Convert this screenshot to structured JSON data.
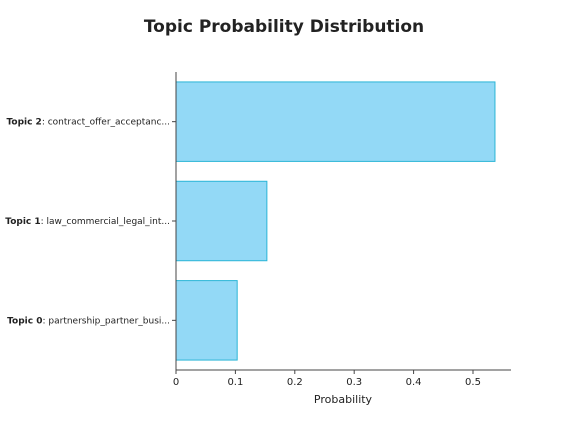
{
  "chart_data": {
    "type": "barh",
    "title": "Topic Probability Distribution",
    "x_label": "Probability",
    "categories": [
      {
        "topic": "Topic 2",
        "name": ": contract_offer_acceptanc..."
      },
      {
        "topic": "Topic 1",
        "name": ": law_commercial_legal_int..."
      },
      {
        "topic": "Topic 0",
        "name": ": partnership_partner_busi..."
      }
    ],
    "values": [
      0.537,
      0.153,
      0.103
    ],
    "color": "#93d9f6",
    "edge_color": "#2ab5d6",
    "xlim": [
      0,
      0.564
    ],
    "xticks": [
      0,
      0.1,
      0.2,
      0.3,
      0.4,
      0.5
    ],
    "grid": false
  }
}
